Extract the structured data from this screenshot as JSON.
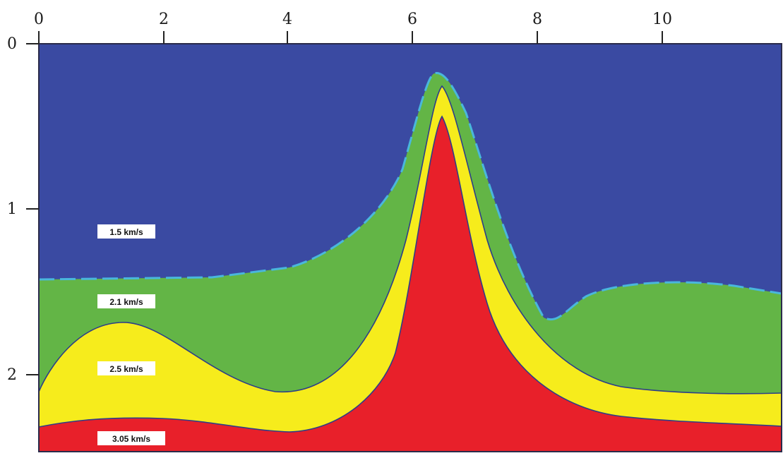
{
  "figure": {
    "x_axis": {
      "ticks": [
        0,
        2,
        4,
        6,
        8,
        10
      ],
      "range": [
        0,
        11.9
      ]
    },
    "y_axis": {
      "ticks": [
        0,
        1,
        2
      ],
      "range": [
        0,
        2.45
      ],
      "inverted": true
    },
    "layers": [
      {
        "label": "1.5 km/s",
        "color": "#3a4aa2"
      },
      {
        "label": "2.1 km/s",
        "color": "#63b546"
      },
      {
        "label": "2.5 km/s",
        "color": "#f6ec1c"
      },
      {
        "label": "3.05 km/s",
        "color": "#e8202a"
      }
    ],
    "interface_color": "#49b7dc"
  }
}
